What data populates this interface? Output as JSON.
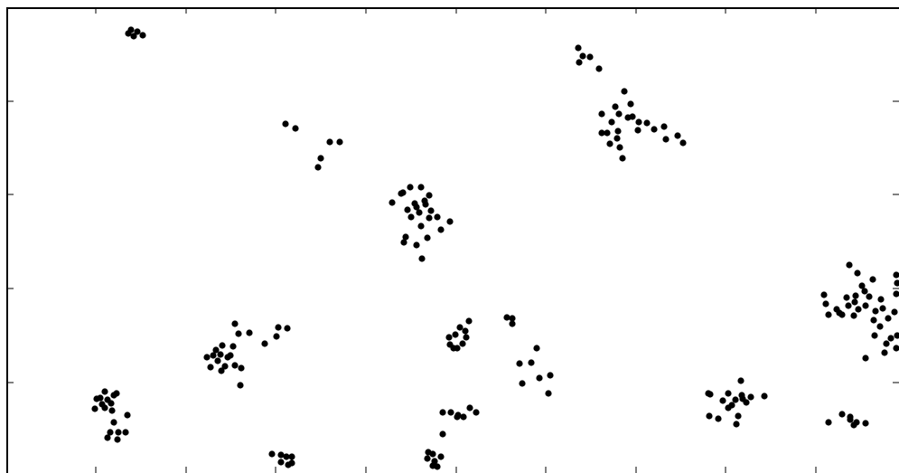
{
  "chart_data": {
    "type": "scatter",
    "title": "",
    "xlabel": "",
    "ylabel": "",
    "grid": false,
    "legend": "none",
    "xlim": [
      0,
      995
    ],
    "ylim": [
      0,
      523
    ],
    "xticks": [
      106,
      206,
      305,
      405,
      505,
      604,
      704,
      803,
      903
    ],
    "yticks": [
      112,
      215,
      319,
      423
    ],
    "marker_color": "#000000",
    "series": [
      {
        "points": [
          [
            145,
            33
          ],
          [
            152,
            35
          ],
          [
            148,
            40
          ],
          [
            158,
            39
          ],
          [
            142,
            37
          ],
          [
            640,
            53
          ],
          [
            645,
            62
          ],
          [
            653,
            63
          ],
          [
            641,
            69
          ],
          [
            663,
            76
          ],
          [
            316,
            137
          ],
          [
            327,
            142
          ],
          [
            365,
            157
          ],
          [
            376,
            157
          ],
          [
            355,
            175
          ],
          [
            352,
            185
          ],
          [
            691,
            101
          ],
          [
            698,
            115
          ],
          [
            681,
            118
          ],
          [
            666,
            126
          ],
          [
            700,
            129
          ],
          [
            685,
            126
          ],
          [
            672,
            147
          ],
          [
            677,
            135
          ],
          [
            707,
            135
          ],
          [
            716,
            136
          ],
          [
            735,
            140
          ],
          [
            675,
            159
          ],
          [
            683,
            153
          ],
          [
            686,
            163
          ],
          [
            706,
            144
          ],
          [
            724,
            143
          ],
          [
            737,
            154
          ],
          [
            750,
            150
          ],
          [
            756,
            158
          ],
          [
            689,
            175
          ],
          [
            666,
            147
          ],
          [
            684,
            145
          ],
          [
            695,
            130
          ],
          [
            454,
            207
          ],
          [
            466,
            207
          ],
          [
            444,
            214
          ],
          [
            475,
            216
          ],
          [
            434,
            224
          ],
          [
            451,
            232
          ],
          [
            461,
            229
          ],
          [
            471,
            226
          ],
          [
            464,
            235
          ],
          [
            477,
            233
          ],
          [
            455,
            240
          ],
          [
            475,
            241
          ],
          [
            484,
            240
          ],
          [
            498,
            245
          ],
          [
            466,
            250
          ],
          [
            488,
            254
          ],
          [
            449,
            262
          ],
          [
            473,
            263
          ],
          [
            461,
            271
          ],
          [
            447,
            268
          ],
          [
            467,
            286
          ],
          [
            459,
            225
          ],
          [
            470,
            222
          ],
          [
            446,
            213
          ],
          [
            940,
            293
          ],
          [
            949,
            302
          ],
          [
            966,
            309
          ],
          [
            992,
            304
          ],
          [
            912,
            326
          ],
          [
            937,
            329
          ],
          [
            946,
            334
          ],
          [
            954,
            316
          ],
          [
            962,
            328
          ],
          [
            975,
            331
          ],
          [
            914,
            336
          ],
          [
            926,
            342
          ],
          [
            939,
            338
          ],
          [
            958,
            338
          ],
          [
            950,
            342
          ],
          [
            969,
            344
          ],
          [
            977,
            341
          ],
          [
            917,
            348
          ],
          [
            932,
            348
          ],
          [
            945,
            349
          ],
          [
            967,
            354
          ],
          [
            983,
            352
          ],
          [
            990,
            345
          ],
          [
            974,
            361
          ],
          [
            993,
            371
          ],
          [
            986,
            374
          ],
          [
            968,
            371
          ],
          [
            981,
            380
          ],
          [
            992,
            385
          ],
          [
            979,
            390
          ],
          [
            958,
            396
          ],
          [
            929,
            346
          ],
          [
            957,
            322
          ],
          [
            992,
            325
          ],
          [
            993,
            313
          ],
          [
            947,
            327
          ],
          [
            260,
            358
          ],
          [
            264,
            369
          ],
          [
            276,
            368
          ],
          [
            308,
            362
          ],
          [
            318,
            363
          ],
          [
            306,
            372
          ],
          [
            293,
            380
          ],
          [
            246,
            382
          ],
          [
            258,
            383
          ],
          [
            236,
            393
          ],
          [
            244,
            392
          ],
          [
            229,
            395
          ],
          [
            241,
            399
          ],
          [
            255,
            393
          ],
          [
            249,
            405
          ],
          [
            233,
            406
          ],
          [
            245,
            410
          ],
          [
            267,
            407
          ],
          [
            260,
            404
          ],
          [
            266,
            426
          ],
          [
            252,
            395
          ],
          [
            239,
            387
          ],
          [
            561,
            351
          ],
          [
            567,
            352
          ],
          [
            567,
            358
          ],
          [
            519,
            355
          ],
          [
            509,
            362
          ],
          [
            515,
            366
          ],
          [
            504,
            370
          ],
          [
            497,
            373
          ],
          [
            516,
            373
          ],
          [
            512,
            380
          ],
          [
            498,
            381
          ],
          [
            506,
            385
          ],
          [
            502,
            385
          ],
          [
            594,
            385
          ],
          [
            575,
            402
          ],
          [
            588,
            401
          ],
          [
            609,
            415
          ],
          [
            597,
            418
          ],
          [
            578,
            424
          ],
          [
            607,
            435
          ],
          [
            116,
            433
          ],
          [
            111,
            440
          ],
          [
            126,
            437
          ],
          [
            129,
            435
          ],
          [
            119,
            442
          ],
          [
            107,
            441
          ],
          [
            123,
            446
          ],
          [
            113,
            447
          ],
          [
            105,
            452
          ],
          [
            116,
            451
          ],
          [
            124,
            454
          ],
          [
            141,
            459
          ],
          [
            126,
            467
          ],
          [
            139,
            478
          ],
          [
            131,
            478
          ],
          [
            122,
            478
          ],
          [
            119,
            484
          ],
          [
            130,
            486
          ],
          [
            820,
            421
          ],
          [
            784,
            435
          ],
          [
            786,
            436
          ],
          [
            806,
            435
          ],
          [
            821,
            437
          ],
          [
            831,
            439
          ],
          [
            846,
            438
          ],
          [
            800,
            443
          ],
          [
            814,
            442
          ],
          [
            822,
            441
          ],
          [
            810,
            448
          ],
          [
            826,
            445
          ],
          [
            806,
            451
          ],
          [
            785,
            460
          ],
          [
            795,
            463
          ],
          [
            817,
            460
          ],
          [
            815,
            469
          ],
          [
            490,
            456
          ],
          [
            499,
            456
          ],
          [
            507,
            459
          ],
          [
            513,
            461
          ],
          [
            520,
            451
          ],
          [
            527,
            456
          ],
          [
            490,
            480
          ],
          [
            506,
            461
          ],
          [
            932,
            458
          ],
          [
            941,
            461
          ],
          [
            917,
            467
          ],
          [
            941,
            464
          ],
          [
            948,
            467
          ],
          [
            958,
            468
          ],
          [
            945,
            470
          ],
          [
            301,
            502
          ],
          [
            311,
            503
          ],
          [
            317,
            505
          ],
          [
            323,
            505
          ],
          [
            311,
            511
          ],
          [
            323,
            512
          ],
          [
            319,
            514
          ],
          [
            474,
            500
          ],
          [
            479,
            502
          ],
          [
            488,
            505
          ],
          [
            473,
            507
          ],
          [
            481,
            510
          ],
          [
            479,
            515
          ],
          [
            484,
            516
          ]
        ]
      }
    ]
  }
}
